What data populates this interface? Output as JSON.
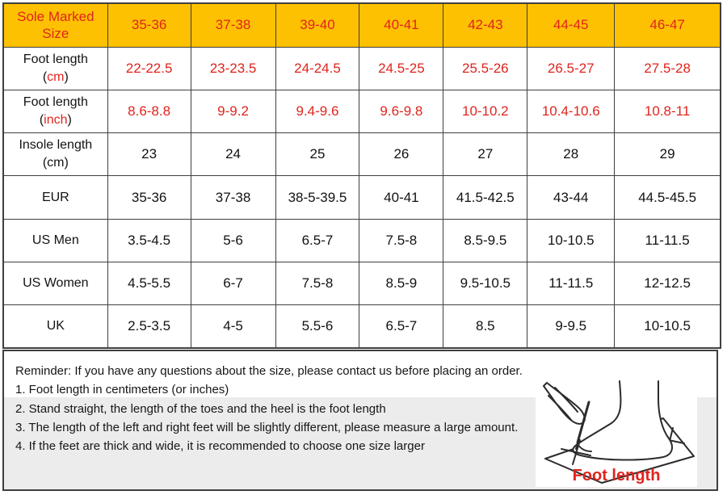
{
  "colors": {
    "header_bg": "#fec101",
    "accent_red": "#e0241d",
    "grid_border": "#3f3f3f",
    "band_gray": "#ececec"
  },
  "table": {
    "header": {
      "label": "Sole Marked Size",
      "sizes": [
        "35-36",
        "37-38",
        "39-40",
        "40-41",
        "42-43",
        "44-45",
        "46-47"
      ]
    },
    "rows": [
      {
        "name": "foot-length-cm",
        "label_lines": [
          [
            {
              "t": "Foot length",
              "red": false
            }
          ],
          [
            {
              "t": "(",
              "red": false
            },
            {
              "t": "cm",
              "red": true
            },
            {
              "t": ")",
              "red": false
            }
          ]
        ],
        "values": [
          "22-22.5",
          "23-23.5",
          "24-24.5",
          "24.5-25",
          "25.5-26",
          "26.5-27",
          "27.5-28"
        ],
        "value_color": "red"
      },
      {
        "name": "foot-length-inch",
        "label_lines": [
          [
            {
              "t": "Foot length",
              "red": false
            }
          ],
          [
            {
              "t": "(",
              "red": false
            },
            {
              "t": "inch",
              "red": true
            },
            {
              "t": ")",
              "red": false
            }
          ]
        ],
        "values": [
          "8.6-8.8",
          "9-9.2",
          "9.4-9.6",
          "9.6-9.8",
          "10-10.2",
          "10.4-10.6",
          "10.8-11"
        ],
        "value_color": "red"
      },
      {
        "name": "insole-length-cm",
        "label_lines": [
          [
            {
              "t": "Insole length",
              "red": false
            }
          ],
          [
            {
              "t": "(cm)",
              "red": false
            }
          ]
        ],
        "values": [
          "23",
          "24",
          "25",
          "26",
          "27",
          "28",
          "29"
        ],
        "value_color": "black"
      },
      {
        "name": "eur",
        "label_lines": [
          [
            {
              "t": "EUR",
              "red": false
            }
          ]
        ],
        "values": [
          "35-36",
          "37-38",
          "38-5-39.5",
          "40-41",
          "41.5-42.5",
          "43-44",
          "44.5-45.5"
        ],
        "value_color": "black"
      },
      {
        "name": "us-men",
        "label_lines": [
          [
            {
              "t": "US Men",
              "red": false
            }
          ]
        ],
        "values": [
          "3.5-4.5",
          "5-6",
          "6.5-7",
          "7.5-8",
          "8.5-9.5",
          "10-10.5",
          "11-11.5"
        ],
        "value_color": "black"
      },
      {
        "name": "us-women",
        "label_lines": [
          [
            {
              "t": "US Women",
              "red": false
            }
          ]
        ],
        "values": [
          "4.5-5.5",
          "6-7",
          "7.5-8",
          "8.5-9",
          "9.5-10.5",
          "11-11.5",
          "12-12.5"
        ],
        "value_color": "black"
      },
      {
        "name": "uk",
        "label_lines": [
          [
            {
              "t": "UK",
              "red": false
            }
          ]
        ],
        "values": [
          "2.5-3.5",
          "4-5",
          "5.5-6",
          "6.5-7",
          "8.5",
          "9-9.5",
          "10-10.5"
        ],
        "value_color": "black"
      }
    ]
  },
  "reminder": {
    "title": "Reminder: If you have any questions about the size, please contact us before placing an order.",
    "items": [
      "1. Foot length in centimeters (or inches)",
      "2. Stand straight, the length of the toes and the heel is the foot length",
      "3. The length of the left and right feet will be slightly different, please measure a large amount.",
      "4. If the feet are thick and wide, it is recommended to choose one size larger"
    ],
    "illustration_label": "Foot length"
  }
}
